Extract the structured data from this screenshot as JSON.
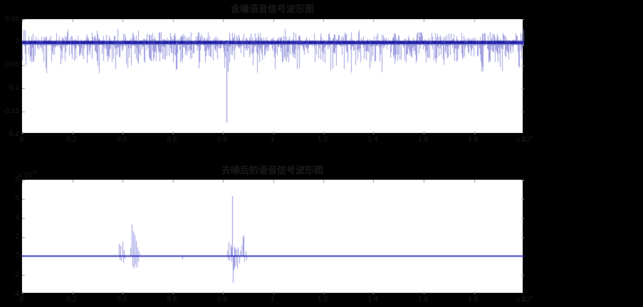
{
  "figure": {
    "background_color": "#000000",
    "axes_background_color": "#ffffff",
    "text_color": "#1d1d1d",
    "tick_color": "#999999"
  },
  "chart_data": [
    {
      "type": "line",
      "title": "含噪语音信号波形图",
      "xlabel": "",
      "ylabel": "",
      "grid": false,
      "legend": null,
      "xlim": [
        0,
        20000
      ],
      "ylim": [
        -0.2,
        0.05
      ],
      "xtick_values": [
        0,
        2000,
        4000,
        6000,
        8000,
        10000,
        12000,
        14000,
        16000,
        18000,
        20000
      ],
      "xtick_labels": [
        "0",
        "0.2",
        "0.4",
        "0.6",
        "0.8",
        "1",
        "1.2",
        "1.4",
        "1.6",
        "1.8",
        "2"
      ],
      "x_multiplier": {
        "base": "x 10",
        "exp": "4"
      },
      "ytick_values": [
        0.05,
        0,
        -0.05,
        -0.1,
        -0.15,
        -0.2
      ],
      "ytick_labels": [
        "0.05",
        "0",
        "-0.05",
        "-0.1",
        "-0.15",
        "-0.2"
      ],
      "line_color": "#8a8ada",
      "baseline_color": "#2a2aac",
      "dash_color": "#1b1b9e",
      "signal": {
        "kind": "dense_noise_waveform",
        "baseline": 0,
        "seed": 20123,
        "up_base": 0.002,
        "up_var": 0.02,
        "up_tail_p": 0.07,
        "down_base": 0.005,
        "down_var": 0.04,
        "down_tail_p": 0.08,
        "core_up": 0.003,
        "core_down": 0.0045,
        "spikes": [
          {
            "x": 8140,
            "y": -0.175
          },
          {
            "x": 8200,
            "y": -0.065
          },
          {
            "x": 6155,
            "y": -0.058
          }
        ]
      }
    },
    {
      "type": "line",
      "title": "去噪后的语音信号波形图",
      "xlabel": "",
      "ylabel": "",
      "grid": false,
      "legend": null,
      "xlim": [
        0,
        20000
      ],
      "ylim": [
        -0.004,
        0.008
      ],
      "xtick_values": [
        0,
        2000,
        4000,
        6000,
        8000,
        10000,
        12000,
        14000,
        16000,
        18000,
        20000
      ],
      "xtick_labels": [
        "0",
        "0.2",
        "0.4",
        "0.6",
        "0.8",
        "1",
        "1.2",
        "1.4",
        "1.6",
        "1.8",
        "2"
      ],
      "x_multiplier": {
        "base": "x 10",
        "exp": "4"
      },
      "ytick_values": [
        0.008,
        0.006,
        0.004,
        0.002,
        0,
        -0.002,
        -0.004
      ],
      "ytick_labels": [
        "8",
        "6",
        "4",
        "2",
        "0",
        "-2",
        "-4"
      ],
      "y_multiplier": {
        "base": "x 10",
        "exp": "-3"
      },
      "line_color": "#9090dd",
      "baseline_color": "#2323be",
      "signal": {
        "kind": "flat_with_spike_bursts",
        "baseline": 0,
        "spikes": [
          {
            "x": 3858,
            "y": 0.0013
          },
          {
            "x": 3886,
            "y": -0.0004
          },
          {
            "x": 3915,
            "y": 0.0011
          },
          {
            "x": 3943,
            "y": -0.0005
          },
          {
            "x": 4000,
            "y": 0.0015
          },
          {
            "x": 4028,
            "y": -0.0007
          },
          {
            "x": 4057,
            "y": 0.0006
          },
          {
            "x": 4085,
            "y": -0.0003
          },
          {
            "x": 4312,
            "y": 0.0009
          },
          {
            "x": 4369,
            "y": 0.0033
          },
          {
            "x": 4397,
            "y": -0.0011
          },
          {
            "x": 4426,
            "y": 0.0026
          },
          {
            "x": 4454,
            "y": -0.0013
          },
          {
            "x": 4483,
            "y": 0.0022
          },
          {
            "x": 4511,
            "y": -0.0009
          },
          {
            "x": 4540,
            "y": 0.0016
          },
          {
            "x": 4568,
            "y": -0.0012
          },
          {
            "x": 4596,
            "y": 0.0009
          },
          {
            "x": 4625,
            "y": -0.0006
          },
          {
            "x": 4653,
            "y": 0.0005
          },
          {
            "x": 6380,
            "y": -0.00035
          },
          {
            "x": 8170,
            "y": 0.0006
          },
          {
            "x": 8200,
            "y": -0.0004
          },
          {
            "x": 8227,
            "y": 0.0015
          },
          {
            "x": 8260,
            "y": -0.0005
          },
          {
            "x": 8300,
            "y": 0.0012
          },
          {
            "x": 8330,
            "y": -0.0006
          },
          {
            "x": 8350,
            "y": 0.0009
          },
          {
            "x": 8369,
            "y": 0.0063
          },
          {
            "x": 8397,
            "y": -0.0028
          },
          {
            "x": 8420,
            "y": -0.0015
          },
          {
            "x": 8440,
            "y": 0.001
          },
          {
            "x": 8460,
            "y": -0.0012
          },
          {
            "x": 8480,
            "y": 0.0008
          },
          {
            "x": 8500,
            "y": -0.001
          },
          {
            "x": 8530,
            "y": 0.0007
          },
          {
            "x": 8560,
            "y": -0.0013
          },
          {
            "x": 8600,
            "y": 0.0009
          },
          {
            "x": 8640,
            "y": -0.0008
          },
          {
            "x": 8680,
            "y": 0.0006
          },
          {
            "x": 8737,
            "y": 0.0011
          },
          {
            "x": 8794,
            "y": 0.002
          },
          {
            "x": 8822,
            "y": 0.0022
          },
          {
            "x": 8860,
            "y": -0.0006
          },
          {
            "x": 8900,
            "y": 0.0005
          },
          {
            "x": 8936,
            "y": -0.0004
          }
        ]
      }
    }
  ]
}
